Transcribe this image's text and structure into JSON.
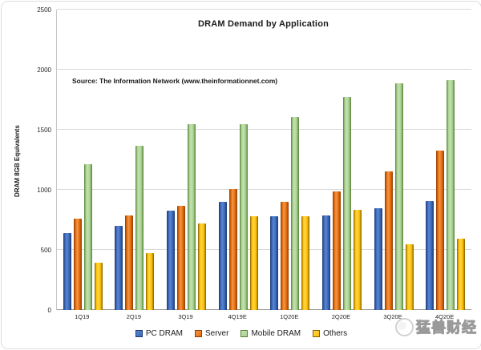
{
  "watermark": {
    "icon": "beast-mascot-logo",
    "text": "猛兽财经"
  },
  "chart_data": {
    "type": "bar",
    "title": "DRAM Demand by Application",
    "source": "Source: The Information Network (www.theinformationnet.com)",
    "xlabel": "",
    "ylabel": "DRAM 8GB Equivalents",
    "ylim": [
      0,
      2500
    ],
    "yticks": [
      0,
      500,
      1000,
      1500,
      2000,
      2500
    ],
    "grid": true,
    "legend_position": "bottom",
    "categories": [
      "1Q19",
      "2Q19",
      "3Q19",
      "4Q19E",
      "1Q20E",
      "2Q20E",
      "3Q20E",
      "4Q20E"
    ],
    "series": [
      {
        "name": "PC DRAM",
        "color": "#3A67B8",
        "edge": "#1D3A6E",
        "light": "#5A86D4",
        "values": [
          640,
          700,
          830,
          900,
          780,
          790,
          850,
          905
        ]
      },
      {
        "name": "Server",
        "color": "#E36C0A",
        "edge": "#8C3D08",
        "light": "#F5954A",
        "values": [
          760,
          790,
          870,
          1010,
          900,
          985,
          1155,
          1330
        ]
      },
      {
        "name": "Mobile DRAM",
        "color": "#A9D18E",
        "edge": "#538135",
        "light": "#C5E0B4",
        "values": [
          1215,
          1370,
          1545,
          1550,
          1605,
          1775,
          1890,
          1915
        ]
      },
      {
        "name": "Others",
        "color": "#FFC000",
        "edge": "#806000",
        "light": "#FFD34D",
        "values": [
          395,
          475,
          720,
          780,
          780,
          835,
          545,
          595
        ]
      }
    ]
  }
}
